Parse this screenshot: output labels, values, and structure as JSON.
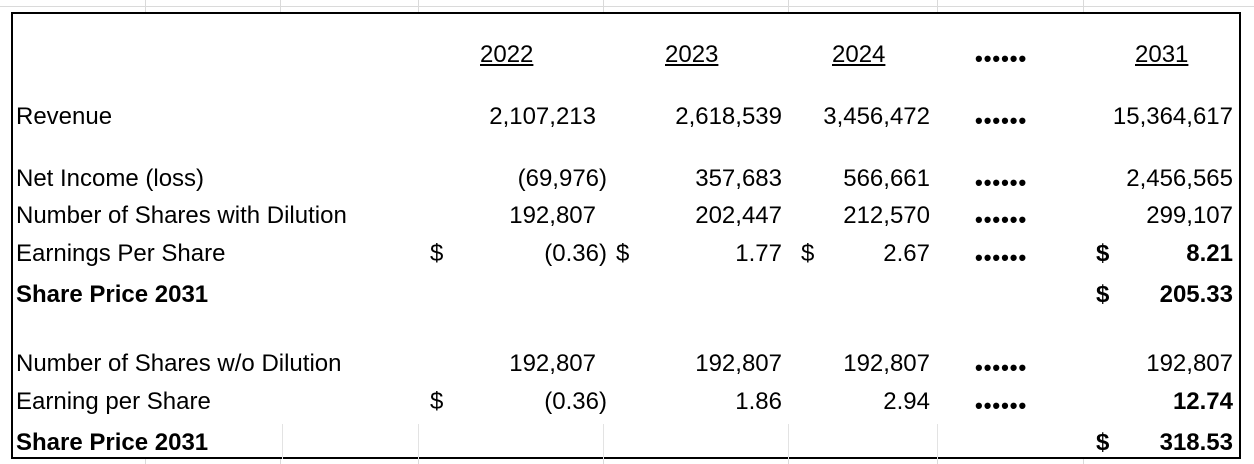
{
  "headers": {
    "y2022": "2022",
    "y2023": "2023",
    "y2024": "2024",
    "ellipsis": "••••••",
    "y2031": "2031"
  },
  "ellipsis": "••••••",
  "currency": "$",
  "rows": {
    "revenue": {
      "label": "Revenue",
      "v2022": "2,107,213",
      "v2023": "2,618,539",
      "v2024": "3,456,472",
      "v2031": "15,364,617"
    },
    "net_income": {
      "label": "Net Income (loss)",
      "v2022": "(69,976)",
      "v2023": "357,683",
      "v2024": "566,661",
      "v2031": "2,456,565"
    },
    "shares_dilution": {
      "label": "Number of Shares with Dilution",
      "v2022": "192,807",
      "v2023": "202,447",
      "v2024": "212,570",
      "v2031": "299,107"
    },
    "eps_dilution": {
      "label": "Earnings Per Share",
      "v2022": "(0.36)",
      "v2023": "1.77",
      "v2024": "2.67",
      "v2031": "8.21"
    },
    "share_price_1": {
      "label": "Share Price 2031",
      "v2031": "205.33"
    },
    "shares_no_dilution": {
      "label": "Number of Shares w/o Dilution",
      "v2022": "192,807",
      "v2023": "192,807",
      "v2024": "192,807",
      "v2031": "192,807"
    },
    "eps_no_dilution": {
      "label": "Earning per Share",
      "v2022": "(0.36)",
      "v2023": "1.86",
      "v2024": "2.94",
      "v2031": "12.74"
    },
    "share_price_2": {
      "label": "Share Price 2031",
      "v2031": "318.53"
    }
  }
}
